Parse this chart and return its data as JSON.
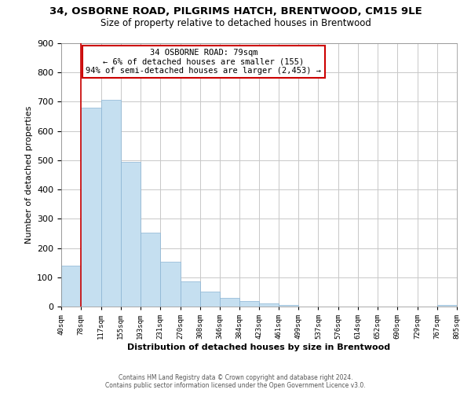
{
  "title": "34, OSBORNE ROAD, PILGRIMS HATCH, BRENTWOOD, CM15 9LE",
  "subtitle": "Size of property relative to detached houses in Brentwood",
  "xlabel": "Distribution of detached houses by size in Brentwood",
  "ylabel": "Number of detached properties",
  "bar_color": "#c5dff0",
  "bar_edge_color": "#8ab4d4",
  "annotation_title": "34 OSBORNE ROAD: 79sqm",
  "annotation_line1": "← 6% of detached houses are smaller (155)",
  "annotation_line2": "94% of semi-detached houses are larger (2,453) →",
  "annotation_box_color": "#ffffff",
  "annotation_box_edge": "#cc0000",
  "redline_color": "#cc0000",
  "redline_x": 78,
  "bin_edges": [
    40,
    78,
    117,
    155,
    193,
    231,
    270,
    308,
    346,
    384,
    423,
    461,
    499,
    537,
    576,
    614,
    652,
    690,
    729,
    767,
    805
  ],
  "bin_counts": [
    139,
    680,
    706,
    493,
    253,
    153,
    86,
    50,
    30,
    20,
    12,
    5,
    1,
    0,
    0,
    0,
    0,
    0,
    0,
    5
  ],
  "ylim": [
    0,
    900
  ],
  "yticks": [
    0,
    100,
    200,
    300,
    400,
    500,
    600,
    700,
    800,
    900
  ],
  "footer_line1": "Contains HM Land Registry data © Crown copyright and database right 2024.",
  "footer_line2": "Contains public sector information licensed under the Open Government Licence v3.0.",
  "background_color": "#ffffff",
  "grid_color": "#c8c8c8"
}
